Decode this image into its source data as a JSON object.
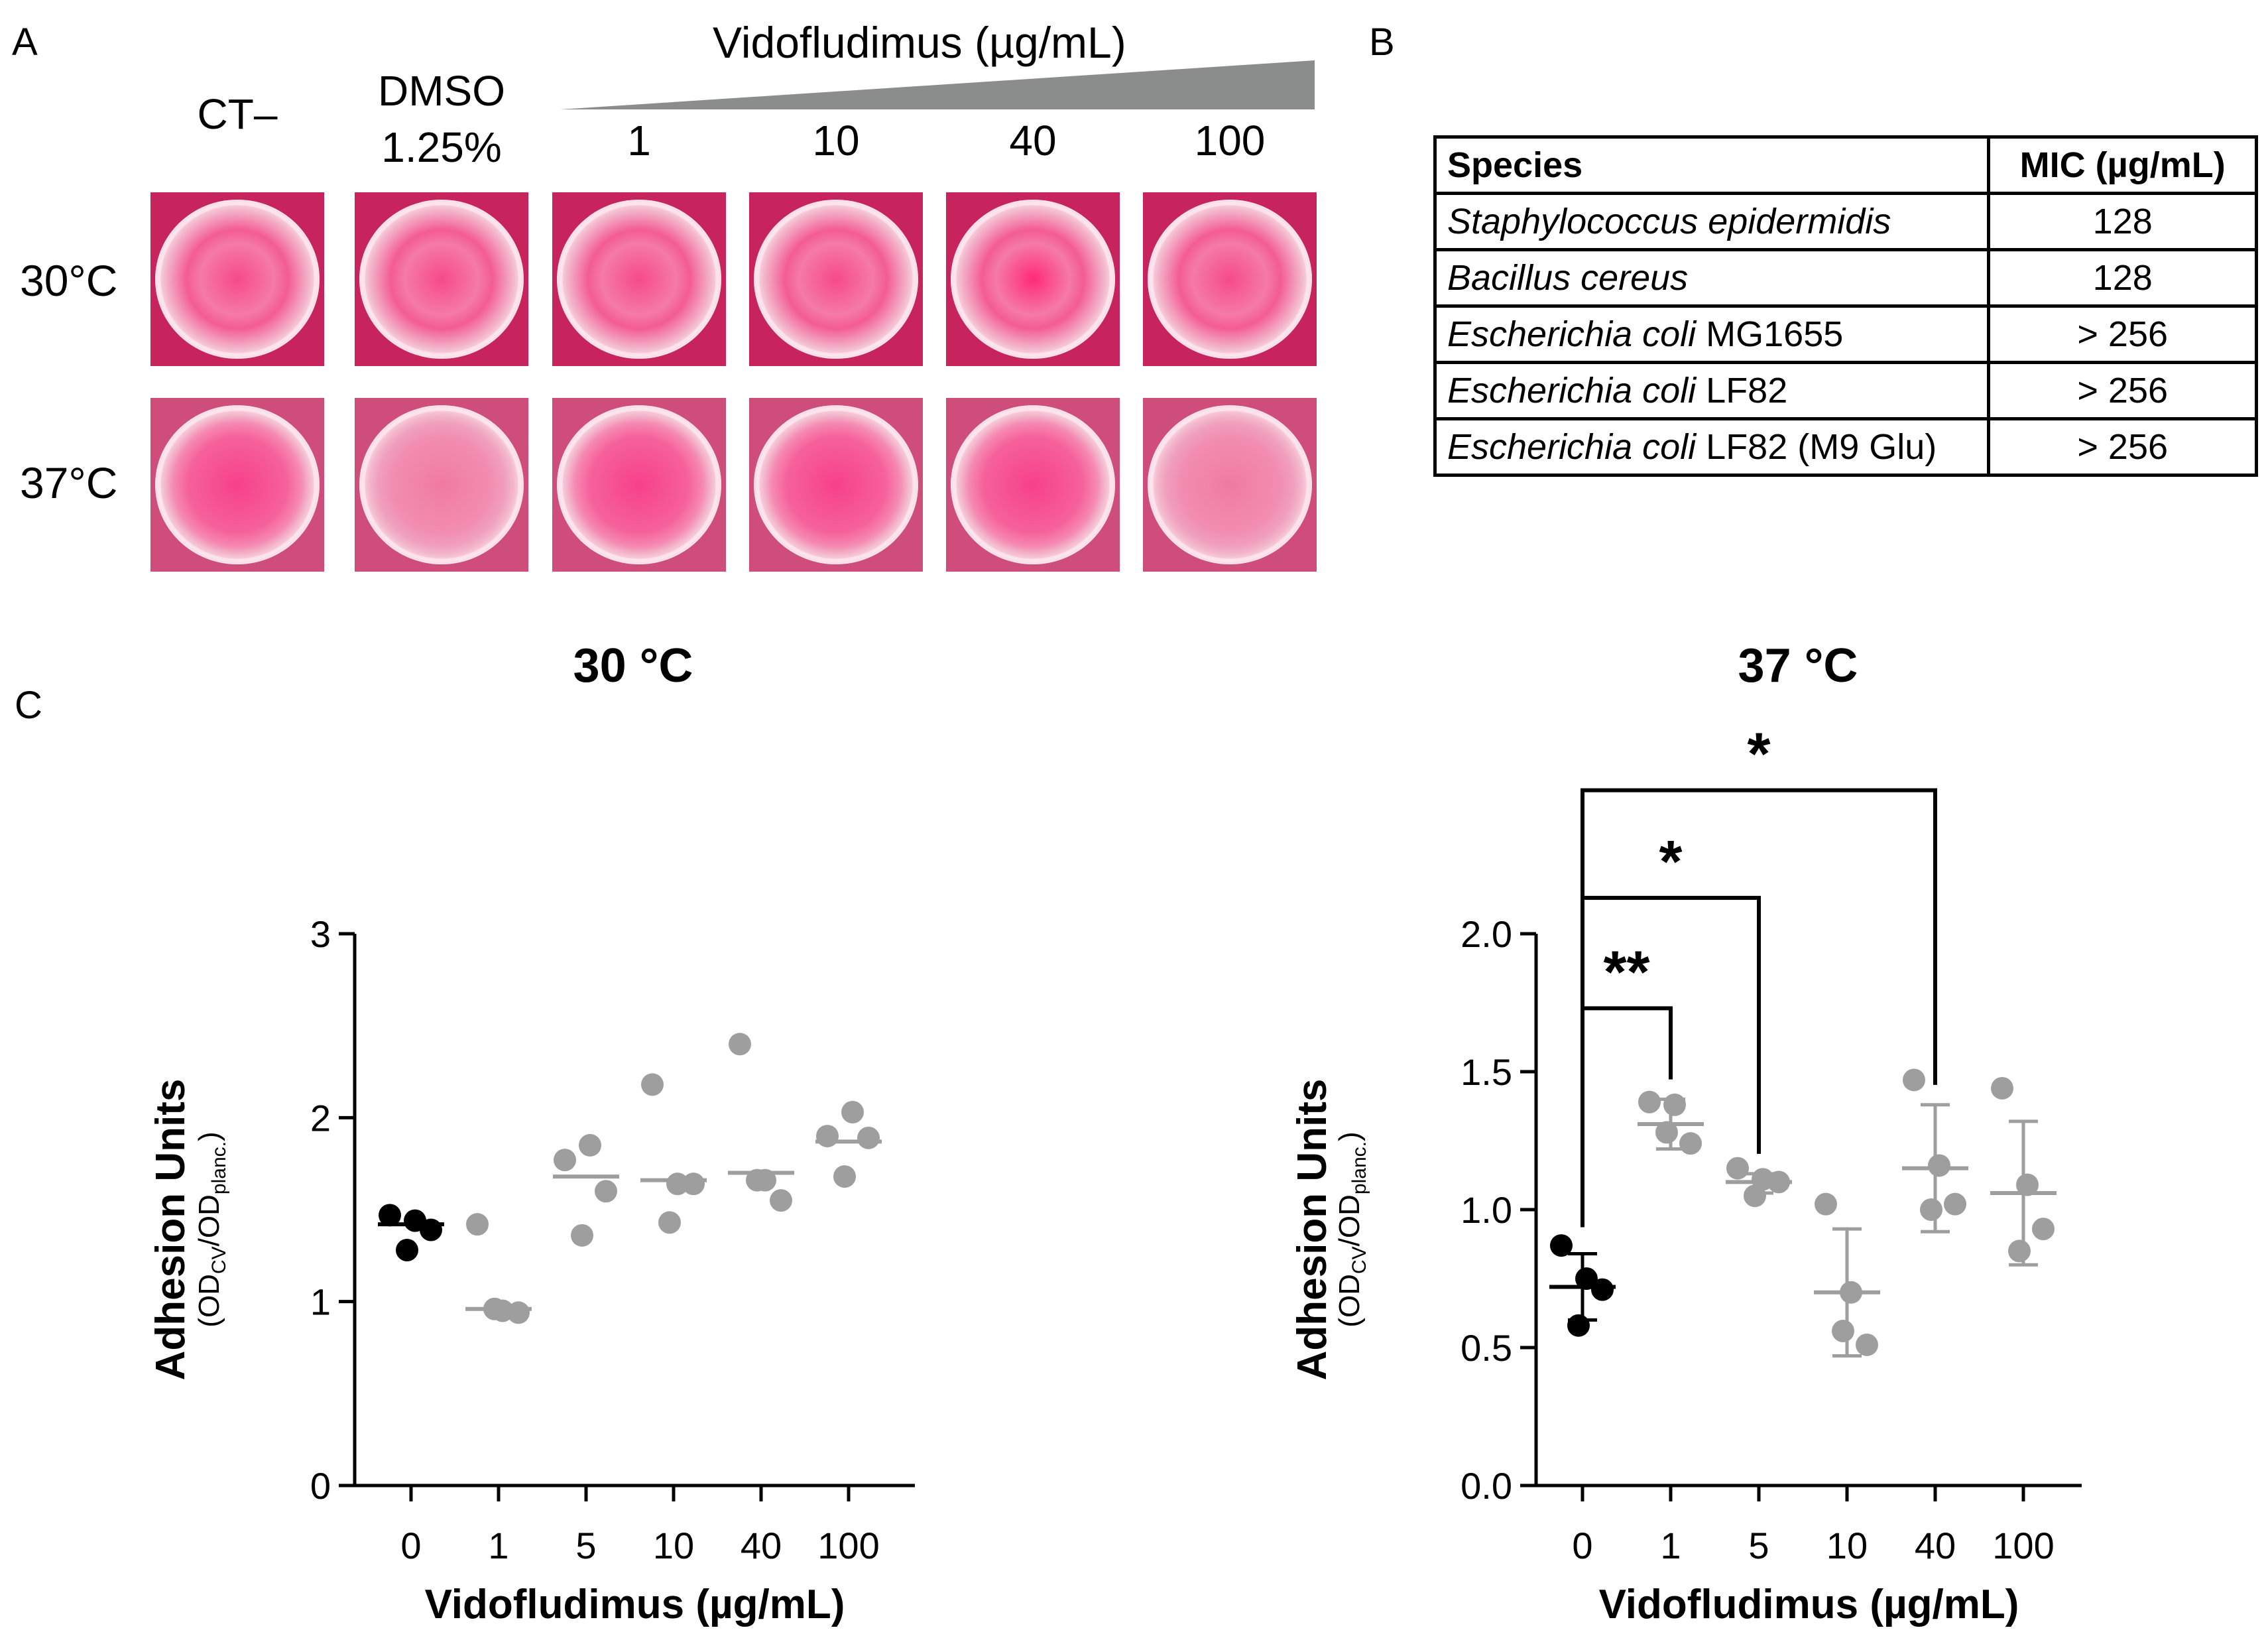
{
  "panel_a": {
    "letter": "A",
    "compound_label": "Vidofludimus (µg/mL)",
    "col_headers": [
      {
        "line1": "CT–",
        "line2": ""
      },
      {
        "line1": "DMSO",
        "line2": "1.25%"
      },
      {
        "line1": "1",
        "line2": ""
      },
      {
        "line1": "10",
        "line2": ""
      },
      {
        "line1": "40",
        "line2": ""
      },
      {
        "line1": "100",
        "line2": ""
      }
    ],
    "row_labels": [
      "30°C",
      "37°C"
    ],
    "plate_color": "#f2538a",
    "wedge_color": "#8a8d8b"
  },
  "panel_b": {
    "letter": "B",
    "headers": [
      "Species",
      "MIC (µg/mL)"
    ],
    "rows": [
      {
        "genus": "Staphylococcus epidermidis",
        "strain": "",
        "mic": "128"
      },
      {
        "genus": "Bacillus cereus",
        "strain": "",
        "mic": "128"
      },
      {
        "genus": "Escherichia coli",
        "strain": " MG1655",
        "mic": "> 256"
      },
      {
        "genus": "Escherichia coli",
        "strain": " LF82",
        "mic": "> 256"
      },
      {
        "genus": "Escherichia coli",
        "strain": " LF82 (M9 Glu)",
        "mic": "> 256"
      }
    ]
  },
  "panel_c": {
    "letter": "C",
    "ylabel_main": "Adhesion Units",
    "ylabel_sub": "(OD",
    "ylabel_cv": "CV",
    "ylabel_mid": "/OD",
    "ylabel_planc": "planc.",
    "ylabel_end": ")",
    "colors": {
      "control": "#000000",
      "treated": "#9e9e9e"
    }
  },
  "chart_data": [
    {
      "type": "scatter",
      "title": "30 °C",
      "xlabel": "Vidofludimus (µg/mL)",
      "ylabel": "Adhesion Units (OD_CV/OD_planc.)",
      "categories": [
        "0",
        "1",
        "5",
        "10",
        "40",
        "100"
      ],
      "ylim": [
        0,
        3
      ],
      "yticks": [
        "0",
        "1",
        "2",
        "3"
      ],
      "series": [
        {
          "category": "0",
          "points": [
            1.47,
            1.44,
            1.39,
            1.28
          ],
          "mean": 1.42
        },
        {
          "category": "1",
          "points": [
            1.42,
            0.95,
            0.94,
            0.96
          ],
          "mean": 0.96
        },
        {
          "category": "5",
          "points": [
            1.77,
            1.85,
            1.6,
            1.36
          ],
          "mean": 1.68
        },
        {
          "category": "10",
          "points": [
            2.18,
            1.64,
            1.64,
            1.43
          ],
          "mean": 1.66
        },
        {
          "category": "40",
          "points": [
            2.4,
            1.66,
            1.55,
            1.66
          ],
          "mean": 1.7
        },
        {
          "category": "100",
          "points": [
            1.9,
            2.03,
            1.89,
            1.68
          ],
          "mean": 1.87
        }
      ],
      "significance": []
    },
    {
      "type": "scatter",
      "title": "37 °C",
      "xlabel": "Vidofludimus (µg/mL)",
      "ylabel": "Adhesion Units (OD_CV/OD_planc.)",
      "categories": [
        "0",
        "1",
        "5",
        "10",
        "40",
        "100"
      ],
      "ylim": [
        0.0,
        2.0
      ],
      "yticks": [
        "0.0",
        "0.5",
        "1.0",
        "1.5",
        "2.0"
      ],
      "series": [
        {
          "category": "0",
          "points": [
            0.87,
            0.75,
            0.71,
            0.58
          ],
          "mean": 0.72,
          "sd_low": 0.6,
          "sd_high": 0.84
        },
        {
          "category": "1",
          "points": [
            1.39,
            1.38,
            1.24,
            1.28
          ],
          "mean": 1.31,
          "sd_low": 1.22,
          "sd_high": 1.4
        },
        {
          "category": "5",
          "points": [
            1.15,
            1.11,
            1.1,
            1.05
          ],
          "mean": 1.1,
          "sd_low": 1.06,
          "sd_high": 1.13
        },
        {
          "category": "10",
          "points": [
            1.02,
            0.7,
            0.51,
            0.56
          ],
          "mean": 0.7,
          "sd_low": 0.47,
          "sd_high": 0.93
        },
        {
          "category": "40",
          "points": [
            1.47,
            1.16,
            1.02,
            1.0
          ],
          "mean": 1.15,
          "sd_low": 0.92,
          "sd_high": 1.38
        },
        {
          "category": "100",
          "points": [
            1.44,
            1.09,
            0.93,
            0.85
          ],
          "mean": 1.06,
          "sd_low": 0.8,
          "sd_high": 1.32
        }
      ],
      "significance": [
        {
          "from": "0",
          "to": "1",
          "label": "**",
          "y": 1.73
        },
        {
          "from": "0",
          "to": "5",
          "label": "*",
          "y": 2.13
        },
        {
          "from": "0",
          "to": "40",
          "label": "*",
          "y": 2.52
        }
      ]
    }
  ]
}
